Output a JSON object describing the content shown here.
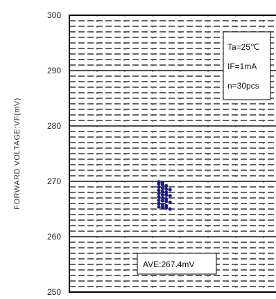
{
  "chart_data": {
    "type": "scatter",
    "title": "",
    "ylabel": "FORWARD VOLTAGE:VF(mV)",
    "xlabel": "",
    "ylim": [
      250,
      300
    ],
    "yticks": [
      250,
      260,
      270,
      280,
      290,
      300
    ],
    "grid": true,
    "annotations": {
      "conditions": [
        "Ta=25℃",
        "IF=1mA",
        "n=30pcs"
      ],
      "average": "AVE:267.4mV"
    },
    "series": [
      {
        "marker_color": "#1c1c8c",
        "values": [
          269.8,
          269.6,
          269.4,
          269.2,
          269.0,
          268.8,
          268.6,
          268.4,
          268.2,
          268.0,
          267.8,
          267.6,
          267.4,
          267.2,
          267.0,
          266.8,
          266.6,
          266.4,
          266.2,
          266.0,
          265.8,
          265.6,
          265.4,
          265.2,
          265.0,
          269.9,
          268.5,
          267.5,
          266.5,
          265.3
        ]
      }
    ]
  }
}
